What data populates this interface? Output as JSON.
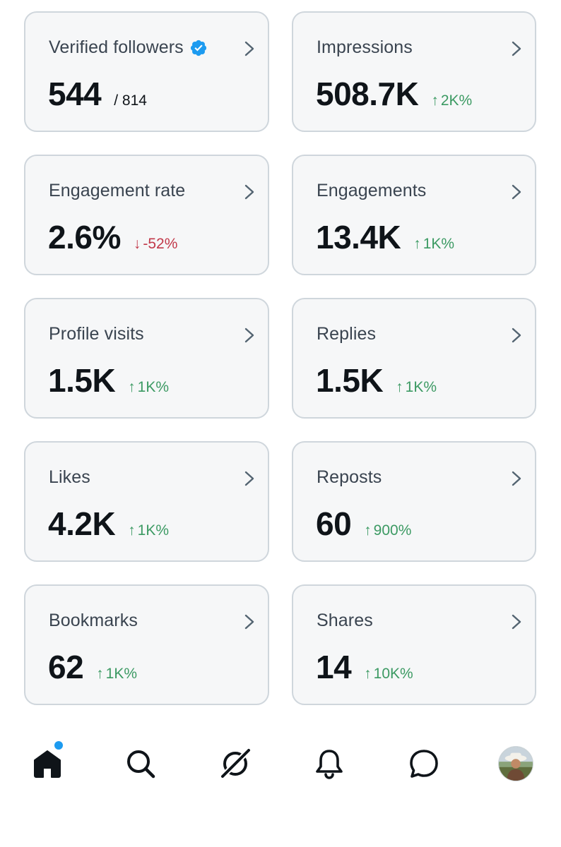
{
  "cards": [
    {
      "label": "Verified followers",
      "value": "544",
      "total": "/ 814",
      "verified": true
    },
    {
      "label": "Impressions",
      "value": "508.7K",
      "delta_arrow": "↑",
      "delta": "2K%",
      "trend": "up"
    },
    {
      "label": "Engagement rate",
      "value": "2.6%",
      "delta_arrow": "↓",
      "delta": "-52%",
      "trend": "down"
    },
    {
      "label": "Engagements",
      "value": "13.4K",
      "delta_arrow": "↑",
      "delta": "1K%",
      "trend": "up"
    },
    {
      "label": "Profile visits",
      "value": "1.5K",
      "delta_arrow": "↑",
      "delta": "1K%",
      "trend": "up"
    },
    {
      "label": "Replies",
      "value": "1.5K",
      "delta_arrow": "↑",
      "delta": "1K%",
      "trend": "up"
    },
    {
      "label": "Likes",
      "value": "4.2K",
      "delta_arrow": "↑",
      "delta": "1K%",
      "trend": "up"
    },
    {
      "label": "Reposts",
      "value": "60",
      "delta_arrow": "↑",
      "delta": "900%",
      "trend": "up"
    },
    {
      "label": "Bookmarks",
      "value": "62",
      "delta_arrow": "↑",
      "delta": "1K%",
      "trend": "up"
    },
    {
      "label": "Shares",
      "value": "14",
      "delta_arrow": "↑",
      "delta": "10K%",
      "trend": "up"
    }
  ],
  "icons": {
    "card_chevron": "chevron-right-icon",
    "verified": "verified-badge-icon"
  },
  "bottom_nav": [
    {
      "name": "home-icon",
      "active": true,
      "notification_dot": true
    },
    {
      "name": "search-icon"
    },
    {
      "name": "grok-icon"
    },
    {
      "name": "notifications-icon"
    },
    {
      "name": "messages-icon"
    },
    {
      "name": "profile-avatar"
    }
  ],
  "colors": {
    "positive": "#3c9a63",
    "negative": "#c2394a",
    "verified_blue": "#1d9bf0",
    "card_bg": "#f6f7f8",
    "card_border": "#cfd6dc"
  }
}
